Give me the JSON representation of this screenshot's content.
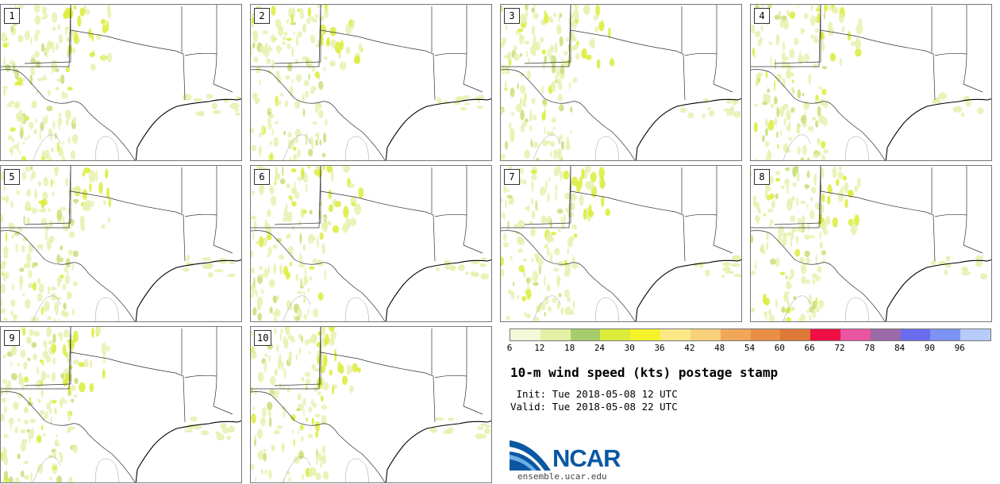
{
  "panels": [
    "1",
    "2",
    "3",
    "4",
    "5",
    "6",
    "7",
    "8",
    "9",
    "10"
  ],
  "legend": {
    "colors": [
      "#f5f8d8",
      "#e3f0a6",
      "#a6cd6b",
      "#dcec3a",
      "#f6f22a",
      "#fbe987",
      "#f8d17a",
      "#f0a75a",
      "#e98e47",
      "#de7836",
      "#ee1044",
      "#e855a0",
      "#9b6aa8",
      "#6a6cee",
      "#7d93f3",
      "#b6cbf9"
    ],
    "tick_labels": [
      "6",
      "12",
      "18",
      "24",
      "30",
      "36",
      "42",
      "48",
      "54",
      "60",
      "66",
      "72",
      "78",
      "84",
      "90",
      "96"
    ]
  },
  "title": "10-m wind speed (kts) postage stamp",
  "init": " Init: Tue 2018-05-08 12 UTC",
  "valid": "Valid: Tue 2018-05-08 22 UTC",
  "logo": {
    "text": "NCAR",
    "url": "ensemble.ucar.edu",
    "colors": {
      "blue": "#0a58a2",
      "light": "#6fb0e6"
    }
  }
}
